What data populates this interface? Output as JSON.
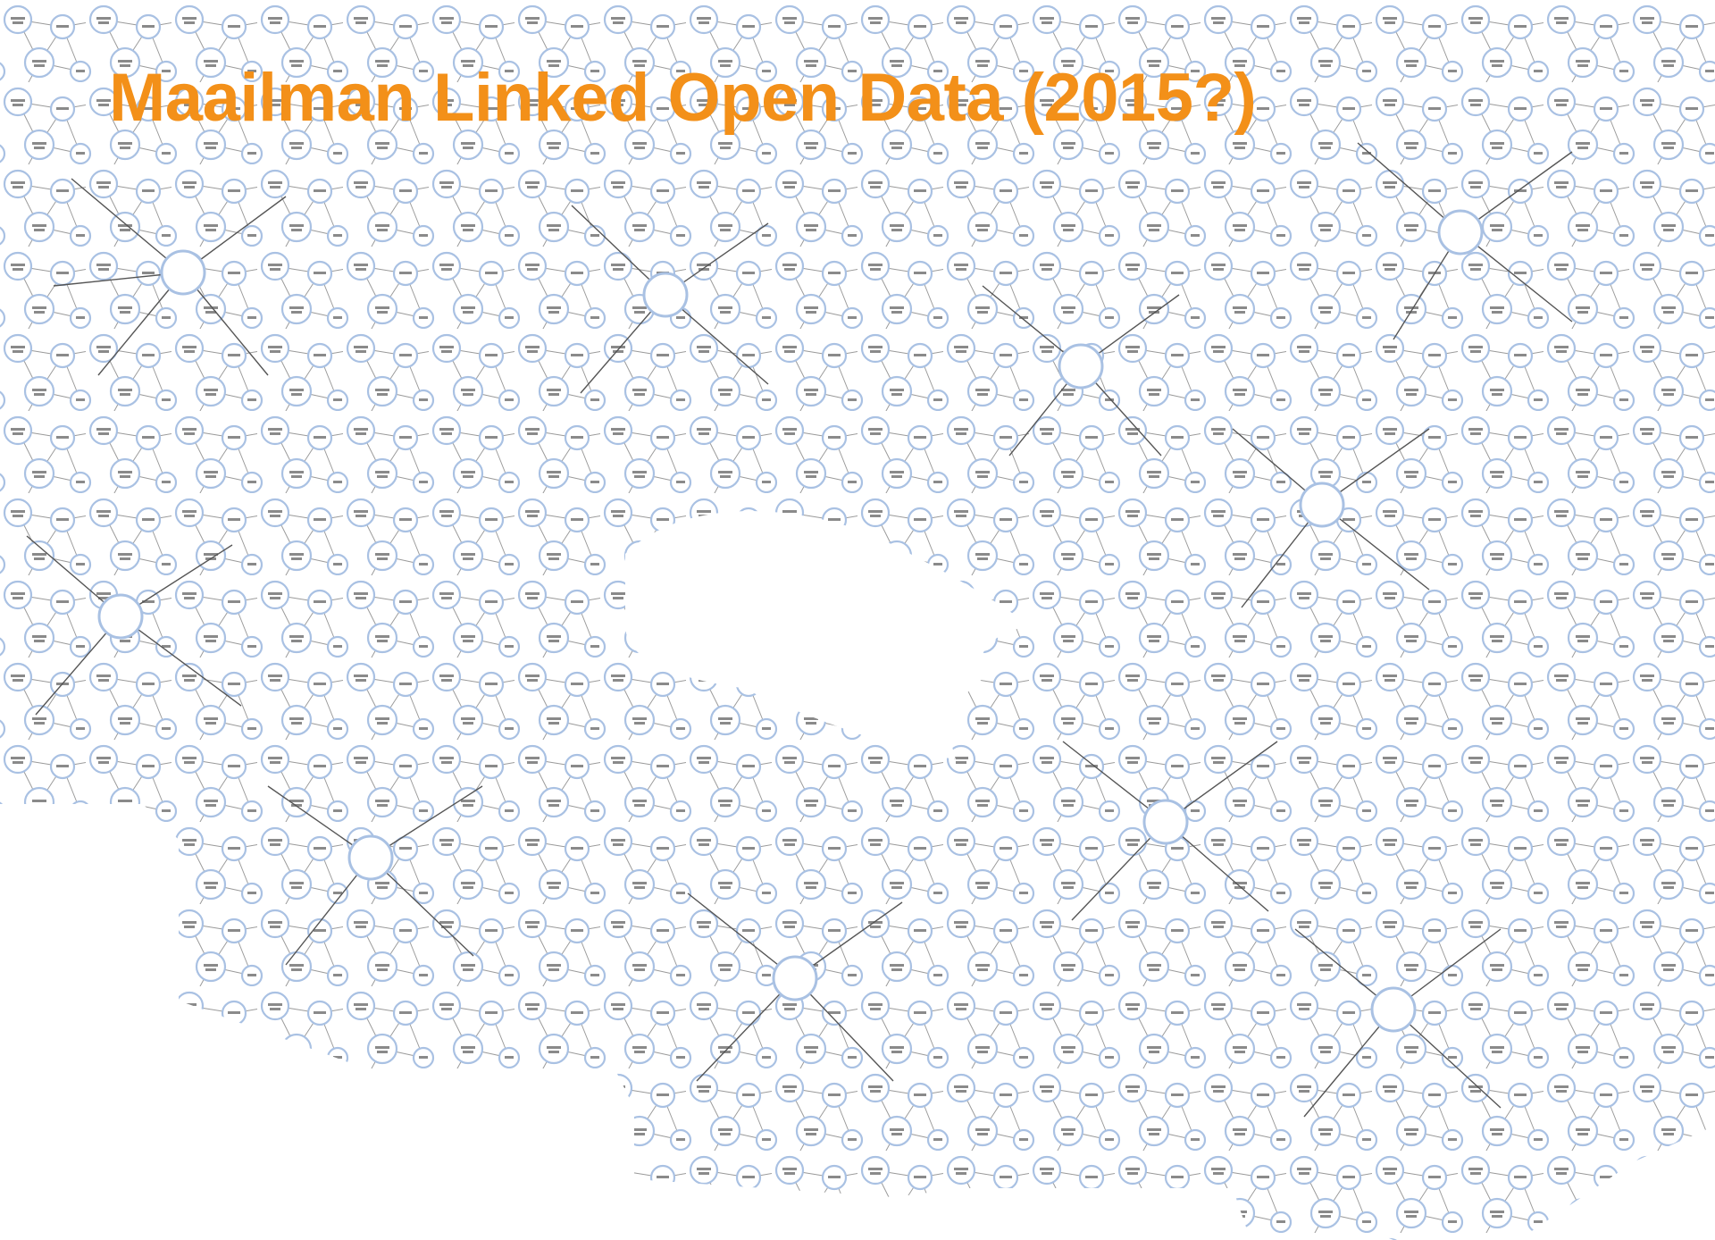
{
  "header": {
    "title": "Maailman Linked Open Data (2015?)"
  }
}
